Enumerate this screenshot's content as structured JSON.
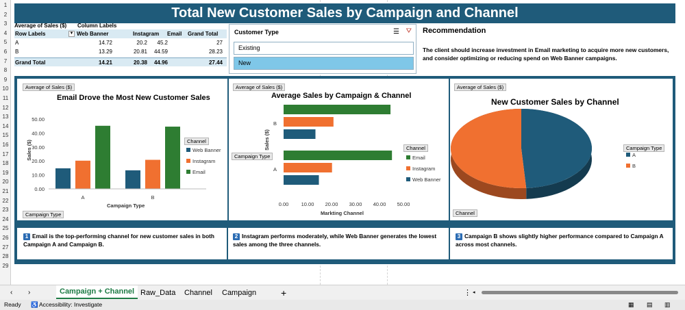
{
  "rows": [
    "1",
    "2",
    "3",
    "4",
    "5",
    "6",
    "7",
    "8",
    "9",
    "10",
    "11",
    "12",
    "13",
    "14",
    "15",
    "16",
    "17",
    "18",
    "19",
    "20",
    "21",
    "22",
    "23",
    "24",
    "25",
    "26",
    "27",
    "28",
    "29"
  ],
  "title": "Total New Customer Sales by Campaign and Channel",
  "pivot": {
    "value_label": "Average of Sales ($)",
    "col_labels": "Column Labels",
    "row_labels": "Row Labels",
    "cols": [
      "Web Banner",
      "Instagram",
      "Email",
      "Grand Total"
    ],
    "rows": [
      {
        "label": "A",
        "vals": [
          "14.72",
          "20.2",
          "45.2",
          "27"
        ]
      },
      {
        "label": "B",
        "vals": [
          "13.29",
          "20.81",
          "44.59",
          "28.23"
        ]
      }
    ],
    "total": {
      "label": "Grand Total",
      "vals": [
        "14.21",
        "20.38",
        "44.96",
        "27.44"
      ]
    }
  },
  "slicer": {
    "title": "Customer Type",
    "items": [
      "Existing",
      "New"
    ],
    "selected": "New"
  },
  "reco": {
    "heading": "Recommendation",
    "body": "The client should increase investment in Email marketing to acquire more new customers, and consider optimizing or reducing spend on Web Banner campaigns."
  },
  "chart1": {
    "field_btn": "Average of Sales ($)",
    "title": "Email Drove the Most New Customer Sales",
    "ylabel": "Sales ($)",
    "xlabel": "Campaign Type",
    "legend_btn": "Channel",
    "axis_btn": "Campaign Type",
    "yticks": [
      "50.00",
      "40.00",
      "30.00",
      "20.00",
      "10.00",
      "0.00"
    ]
  },
  "chart2": {
    "field_btn": "Average of Sales ($)",
    "title": "Average Sales by Campaign & Channel",
    "ylabel": "Sales ($)",
    "xlabel": "Markting Channel",
    "legend_btn": "Channel",
    "axis_btn": "Campaign Type",
    "xticks": [
      "0.00",
      "10.00",
      "20.00",
      "30.00",
      "40.00",
      "50.00"
    ]
  },
  "chart3": {
    "field_btn": "Average of Sales ($)",
    "title": "New Customer Sales by Channel",
    "legend_btn": "Campaign Type",
    "axis_btn": "Channel"
  },
  "chart_data": [
    {
      "type": "bar",
      "categories": [
        "A",
        "B"
      ],
      "series": [
        {
          "name": "Web Banner",
          "values": [
            14.72,
            13.29
          ]
        },
        {
          "name": "Instagram",
          "values": [
            20.2,
            20.81
          ]
        },
        {
          "name": "Email",
          "values": [
            45.2,
            44.59
          ]
        }
      ],
      "title": "Email Drove the Most New Customer Sales",
      "xlabel": "Campaign Type",
      "ylabel": "Sales ($)",
      "ylim": [
        0,
        50
      ],
      "colors": [
        "#1f5b7a",
        "#f07030",
        "#2e7d32"
      ]
    },
    {
      "type": "bar",
      "orientation": "horizontal",
      "categories": [
        "A",
        "B"
      ],
      "series": [
        {
          "name": "Web Banner",
          "values": [
            14.72,
            13.29
          ]
        },
        {
          "name": "Instagram",
          "values": [
            20.2,
            20.81
          ]
        },
        {
          "name": "Email",
          "values": [
            45.2,
            44.59
          ]
        }
      ],
      "title": "Average Sales by Campaign & Channel",
      "xlabel": "Markting Channel",
      "ylabel": "Sales ($)",
      "xlim": [
        0,
        50
      ],
      "colors": [
        "#1f5b7a",
        "#f07030",
        "#2e7d32"
      ]
    },
    {
      "type": "pie",
      "categories": [
        "A",
        "B"
      ],
      "values": [
        27,
        28.23
      ],
      "title": "New Customer Sales by Channel",
      "colors": [
        "#1f5b7a",
        "#f07030"
      ]
    }
  ],
  "insights": [
    {
      "n": "1",
      "text": "Email is the top-performing channel for new customer sales in both Campaign A and Campaign B."
    },
    {
      "n": "2",
      "text": "Instagram performs moderately, while Web Banner generates the lowest sales among the three channels."
    },
    {
      "n": "3",
      "text": "Campaign B shows slightly higher performance compared to Campaign A across most channels."
    }
  ],
  "tabs": [
    "Campaign + Channel",
    "Raw_Data",
    "Channel",
    "Campaign"
  ],
  "status": {
    "ready": "Ready",
    "access": "Accessibility: Investigate"
  }
}
